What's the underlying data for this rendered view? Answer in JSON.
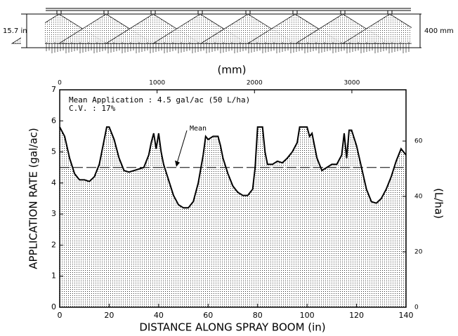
{
  "diagram": {
    "height_in": "15.7 in",
    "height_mm": "400 mm"
  },
  "chart_data": {
    "type": "area",
    "x_label": "DISTANCE ALONG SPRAY BOOM (in)",
    "y_label": "APPLICATION RATE (gal/ac)",
    "x2_label": "(mm)",
    "y2_label": "(L/ha)",
    "annotations": [
      "Mean Application : 4.5 gal/ac (50 L/ha)",
      "C.V. : 17%",
      "Mean"
    ],
    "mean": 4.5,
    "color": "#000000",
    "x": [
      0,
      2,
      4,
      6,
      8,
      10,
      12,
      14,
      16,
      18,
      19,
      20,
      22,
      24,
      26,
      28,
      30,
      32,
      34,
      36,
      37,
      38,
      39,
      40,
      41,
      42,
      44,
      46,
      48,
      50,
      52,
      54,
      56,
      58,
      59,
      60,
      62,
      64,
      65,
      66,
      68,
      70,
      72,
      74,
      76,
      78,
      79,
      80,
      82,
      83,
      84,
      86,
      88,
      90,
      92,
      94,
      96,
      97,
      100,
      101,
      102,
      104,
      106,
      108,
      110,
      112,
      114,
      115,
      116,
      117,
      118,
      120,
      122,
      124,
      126,
      128,
      130,
      132,
      134,
      136,
      138,
      140
    ],
    "values": [
      5.8,
      5.5,
      4.8,
      4.3,
      4.1,
      4.1,
      4.05,
      4.2,
      4.6,
      5.4,
      5.8,
      5.8,
      5.4,
      4.8,
      4.4,
      4.35,
      4.4,
      4.45,
      4.5,
      4.9,
      5.3,
      5.6,
      5.1,
      5.6,
      5.0,
      4.6,
      4.1,
      3.6,
      3.3,
      3.2,
      3.2,
      3.4,
      4.0,
      4.9,
      5.5,
      5.4,
      5.5,
      5.5,
      5.2,
      4.8,
      4.3,
      3.9,
      3.7,
      3.6,
      3.6,
      3.8,
      4.5,
      5.8,
      5.8,
      5.0,
      4.6,
      4.6,
      4.7,
      4.65,
      4.8,
      5.0,
      5.3,
      5.8,
      5.8,
      5.5,
      5.6,
      4.8,
      4.4,
      4.5,
      4.6,
      4.6,
      4.9,
      5.6,
      4.8,
      5.7,
      5.7,
      5.2,
      4.5,
      3.8,
      3.4,
      3.35,
      3.5,
      3.8,
      4.2,
      4.7,
      5.1,
      4.9
    ],
    "xlim": [
      0,
      140
    ],
    "xticks": [
      0,
      20,
      40,
      60,
      80,
      100,
      120,
      140
    ],
    "ylim": [
      0,
      7
    ],
    "yticks": [
      0,
      1,
      2,
      3,
      4,
      5,
      6,
      7
    ],
    "x2lim": [
      0,
      3556
    ],
    "x2ticks": [
      0,
      1000,
      2000,
      3000
    ],
    "y2lim": [
      0,
      78.5
    ],
    "y2ticks": [
      0,
      20,
      40,
      60
    ]
  }
}
